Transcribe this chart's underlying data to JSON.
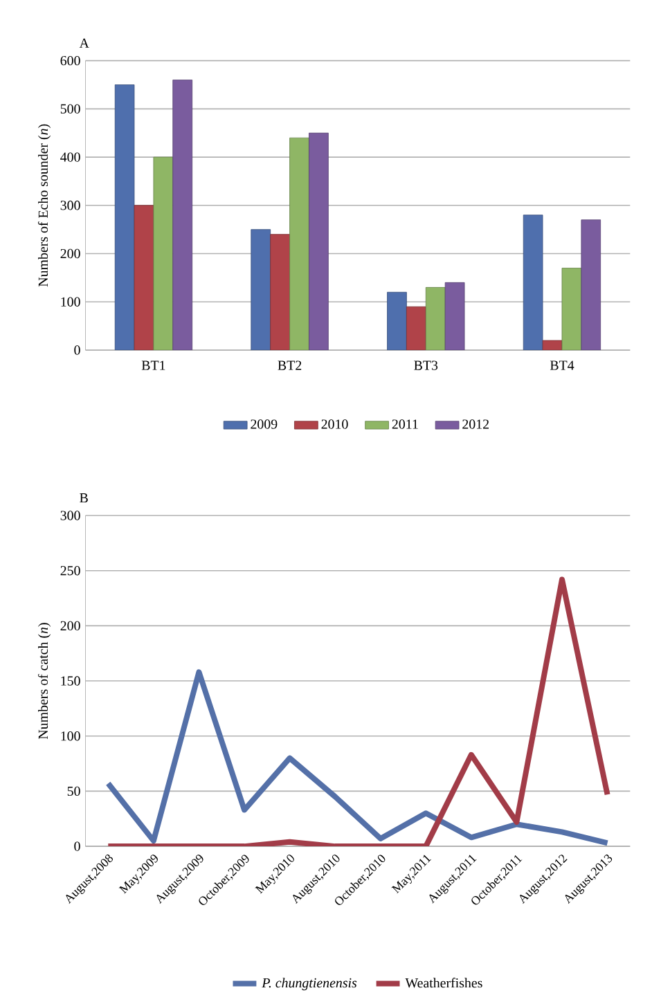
{
  "chart_data": [
    {
      "type": "bar",
      "title": "A",
      "ylabel": "Numbers of Echo sounder (*n*)",
      "categories": [
        "BT1",
        "BT2",
        "BT3",
        "BT4"
      ],
      "series": [
        {
          "name": "2009",
          "color": "#4f6fad",
          "values": [
            550,
            250,
            120,
            280
          ]
        },
        {
          "name": "2010",
          "color": "#b04349",
          "values": [
            300,
            240,
            90,
            20
          ]
        },
        {
          "name": "2011",
          "color": "#8fb665",
          "values": [
            400,
            440,
            130,
            170
          ]
        },
        {
          "name": "2012",
          "color": "#7a5c9e",
          "values": [
            560,
            450,
            140,
            270
          ]
        }
      ],
      "ylim": [
        0,
        600
      ],
      "yticks": [
        0,
        100,
        200,
        300,
        400,
        500,
        600
      ],
      "grid": "y",
      "legend": "bottom"
    },
    {
      "type": "line",
      "title": "B",
      "ylabel": "Numbers of catch (*n*)",
      "categories": [
        "August,2008",
        "May,2009",
        "August,2009",
        "October,2009",
        "May,2010",
        "August,2010",
        "October,2010",
        "May,2011",
        "August,2011",
        "October,2011",
        "August,2012",
        "August,2013"
      ],
      "series": [
        {
          "name": "*P. chungtienensis*",
          "color": "#5470a8",
          "values": [
            57,
            5,
            158,
            33,
            80,
            45,
            7,
            30,
            8,
            20,
            13,
            3
          ]
        },
        {
          "name": "Weatherfishes",
          "color": "#a23c48",
          "values": [
            0,
            0,
            0,
            0,
            4,
            0,
            0,
            0,
            83,
            22,
            242,
            47
          ]
        }
      ],
      "ylim": [
        0,
        300
      ],
      "yticks": [
        0,
        50,
        100,
        150,
        200,
        250,
        300
      ],
      "grid": "y",
      "legend": "bottom",
      "marker": "none"
    }
  ]
}
